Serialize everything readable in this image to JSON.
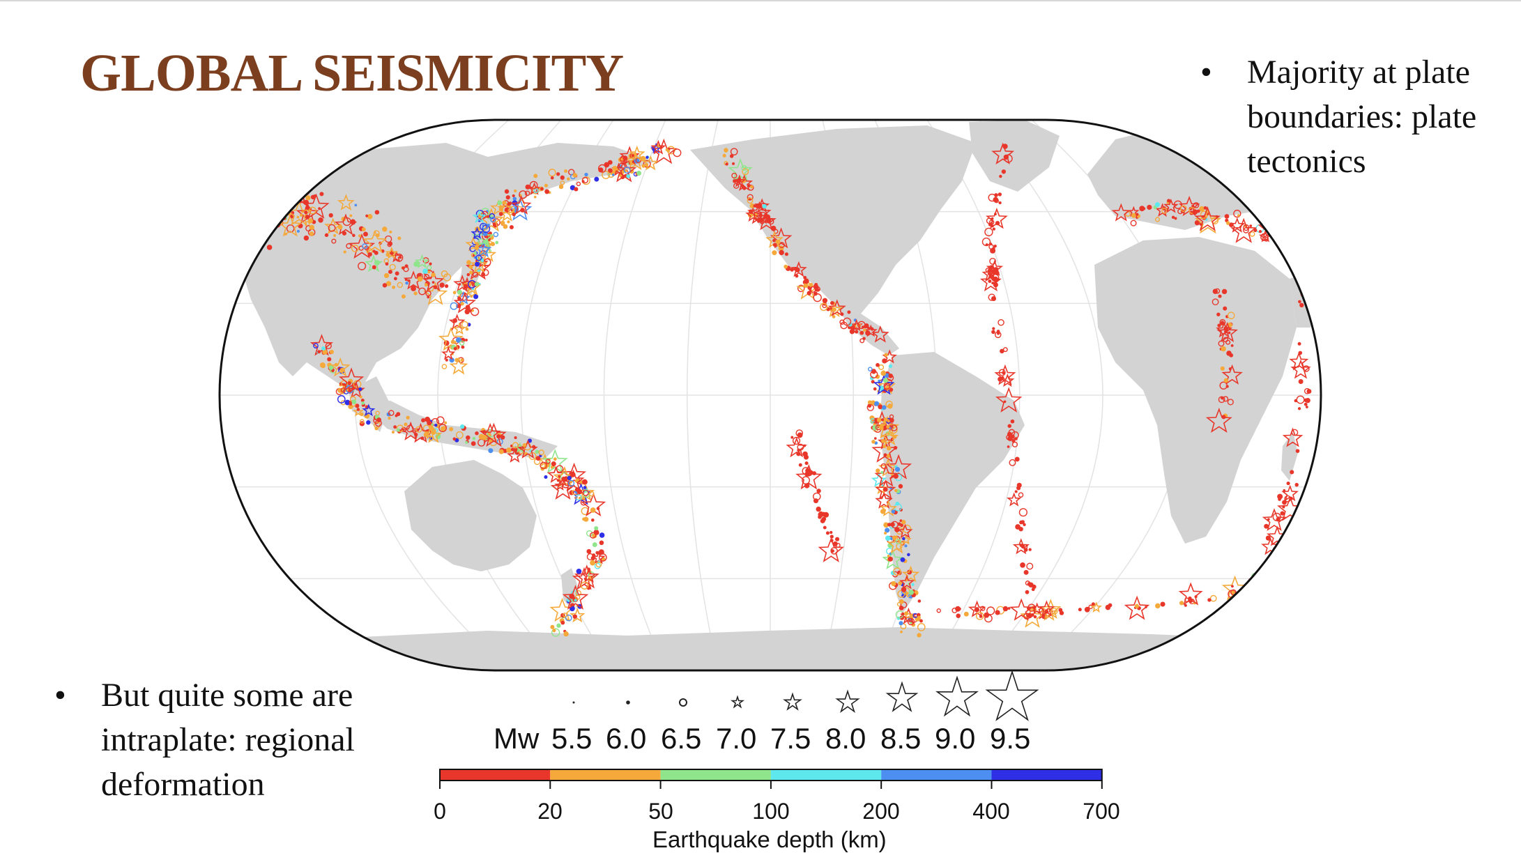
{
  "title": "GLOBAL SEISMICITY",
  "bullets": {
    "right": {
      "dot": "•",
      "lines": [
        "Majority at plate",
        "boundaries: plate",
        "tectonics"
      ]
    },
    "left": {
      "dot": "•",
      "lines": [
        "But quite some are",
        "intraplate: regional",
        "deformation"
      ]
    }
  },
  "legend": {
    "magnitude_prefix": "Mw",
    "magnitudes": [
      "5.5",
      "6.0",
      "6.5",
      "7.0",
      "7.5",
      "8.0",
      "8.5",
      "9.0",
      "9.5"
    ],
    "magnitude_symbols": [
      "dot",
      "dot",
      "circle",
      "star",
      "star",
      "star",
      "star",
      "star",
      "star"
    ]
  },
  "colorbar": {
    "ticks": [
      "0",
      "20",
      "50",
      "100",
      "200",
      "400",
      "700"
    ],
    "colors": [
      "#e8372a",
      "#f5a93a",
      "#8fe58c",
      "#5ee8ee",
      "#4c8ff0",
      "#2f2fe8"
    ],
    "label": "Earthquake depth (km)"
  },
  "map": {
    "projection": "robinson",
    "land_color": "#d3d3d3",
    "ocean_color": "#ffffff",
    "symbol_icons": [
      "star-icon",
      "circle-icon"
    ]
  }
}
